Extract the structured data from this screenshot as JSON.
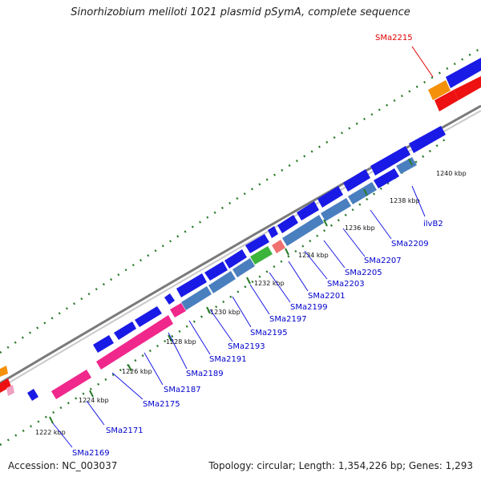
{
  "header": {
    "title": "Sinorhizobium meliloti 1021 plasmid pSymA, complete sequence"
  },
  "footer": {
    "accession": "Accession: NC_003037",
    "stats": "Topology: circular; Length: 1,354,226 bp; Genes: 1,293"
  },
  "axis_ticks": [
    "1222 kbp",
    "1224 kbp",
    "1226 kbp",
    "1228 kbp",
    "1230 kbp",
    "1232 kbp",
    "1234 kbp",
    "1236 kbp",
    "1238 kbp",
    "1240 kbp"
  ],
  "gene_labels": [
    {
      "text": "SMa2169",
      "color": "blue"
    },
    {
      "text": "SMa2171",
      "color": "blue"
    },
    {
      "text": "SMa2175",
      "color": "blue"
    },
    {
      "text": "SMa2187",
      "color": "blue"
    },
    {
      "text": "SMa2189",
      "color": "blue"
    },
    {
      "text": "SMa2191",
      "color": "blue"
    },
    {
      "text": "SMa2193",
      "color": "blue"
    },
    {
      "text": "SMa2195",
      "color": "blue"
    },
    {
      "text": "SMa2197",
      "color": "blue"
    },
    {
      "text": "SMa2199",
      "color": "blue"
    },
    {
      "text": "SMa2201",
      "color": "blue"
    },
    {
      "text": "SMa2203",
      "color": "blue"
    },
    {
      "text": "SMa2205",
      "color": "blue"
    },
    {
      "text": "SMa2207",
      "color": "blue"
    },
    {
      "text": "SMa2209",
      "color": "blue"
    },
    {
      "text": "ilvB2",
      "color": "blue"
    },
    {
      "text": "SMa2215",
      "color": "red"
    }
  ],
  "colors": {
    "cds_blue": "#1a1ae6",
    "rna_steel": "#4a7fbf",
    "pink": "#f0288c",
    "green": "#3cb43c",
    "salmon": "#f07070",
    "orange": "#f5900a",
    "red": "#ee1111",
    "backbone": "#808080",
    "gc_green": "#2a7a2a"
  }
}
